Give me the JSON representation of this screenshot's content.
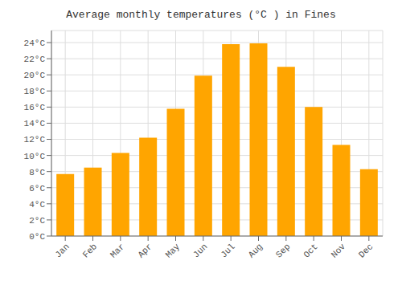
{
  "chart_data": {
    "type": "bar",
    "title": "Average monthly temperatures (°C ) in Fines",
    "categories": [
      "Jan",
      "Feb",
      "Mar",
      "Apr",
      "May",
      "Jun",
      "Jul",
      "Aug",
      "Sep",
      "Oct",
      "Nov",
      "Dec"
    ],
    "values": [
      7.7,
      8.5,
      10.3,
      12.2,
      15.8,
      19.9,
      23.8,
      23.9,
      21.0,
      16.0,
      11.3,
      8.3
    ],
    "color": "#FFA500",
    "ylim": [
      0,
      25.5
    ],
    "yticks": [
      {
        "value": 0,
        "label": "0°C"
      },
      {
        "value": 2,
        "label": "2°C"
      },
      {
        "value": 4,
        "label": "4°C"
      },
      {
        "value": 6,
        "label": "6°C"
      },
      {
        "value": 8,
        "label": "8°C"
      },
      {
        "value": 10,
        "label": "10°C"
      },
      {
        "value": 12,
        "label": "12°C"
      },
      {
        "value": 14,
        "label": "14°C"
      },
      {
        "value": 16,
        "label": "16°C"
      },
      {
        "value": 18,
        "label": "18°C"
      },
      {
        "value": 20,
        "label": "20°C"
      },
      {
        "value": 22,
        "label": "22°C"
      },
      {
        "value": 24,
        "label": "24°C"
      }
    ],
    "grid": true
  }
}
